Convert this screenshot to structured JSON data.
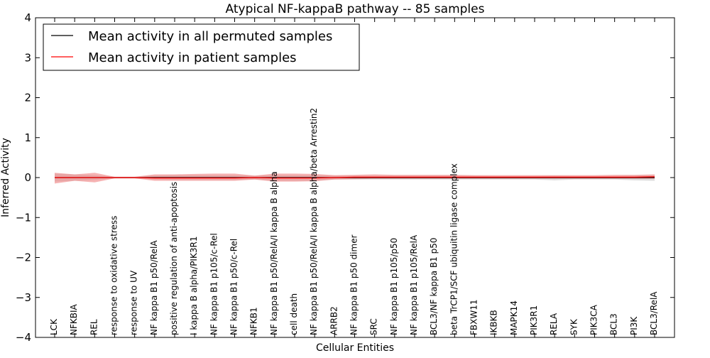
{
  "chart_data": {
    "type": "line",
    "title": "Atypical NF-kappaB pathway -- 85 samples",
    "xlabel": "Cellular Entities",
    "ylabel": "Inferred Activity",
    "ylim": [
      -4,
      4
    ],
    "yticks": [
      "−4",
      "−3",
      "−2",
      "−1",
      "0",
      "1",
      "2",
      "3",
      "4"
    ],
    "ytick_values": [
      -4,
      -3,
      -2,
      -1,
      0,
      1,
      2,
      3,
      4
    ],
    "grid": false,
    "legend_position": "top-left",
    "categories": [
      "LCK",
      "NFKBIA",
      "REL",
      "response to oxidative stress",
      "response to UV",
      "NF kappa B1 p50/RelA",
      "positive regulation of anti-apoptosis",
      "I kappa B alpha/PIK3R1",
      "NF kappa B1 p105/c-Rel",
      "NF kappa B1 p50/c-Rel",
      "NFKB1",
      "NF kappa B1 p50/RelA/I kappa B alpha",
      "cell death",
      "NF kappa B1 p50/RelA/I kappa B alpha/beta Arrestin2",
      "ARRB2",
      "NF kappa B1 p50 dimer",
      "SRC",
      "NF kappa B1 p105/p50",
      "NF kappa B1 p105/RelA",
      "BCL3/NF kappa B1 p50",
      "beta TrCP1/SCF ubiquitin ligase complex",
      "FBXW11",
      "IKBKB",
      "MAPK14",
      "PIK3R1",
      "RELA",
      "SYK",
      "PIK3CA",
      "BCL3",
      "PI3K",
      "BCL3/RelA"
    ],
    "series": [
      {
        "name": "Mean activity in all permuted samples",
        "color": "#000000",
        "band_color": "#bfbfbf",
        "values": [
          0,
          0,
          0,
          0,
          0,
          0,
          0,
          0,
          0,
          0,
          0,
          0,
          0,
          0,
          0,
          0,
          0,
          0,
          0,
          0,
          0,
          0,
          0,
          0,
          0,
          0,
          0,
          0,
          0,
          0,
          0
        ],
        "band_upper": [
          0.1,
          0.08,
          0.06,
          0.02,
          0.02,
          0.05,
          0.06,
          0.06,
          0.06,
          0.06,
          0.05,
          0.06,
          0.06,
          0.06,
          0.05,
          0.05,
          0.05,
          0.05,
          0.05,
          0.05,
          0.05,
          0.05,
          0.04,
          0.04,
          0.04,
          0.05,
          0.04,
          0.04,
          0.04,
          0.05,
          0.06
        ],
        "band_lower": [
          -0.1,
          -0.08,
          -0.06,
          -0.02,
          -0.02,
          -0.05,
          -0.06,
          -0.06,
          -0.06,
          -0.06,
          -0.05,
          -0.08,
          -0.08,
          -0.08,
          -0.05,
          -0.05,
          -0.05,
          -0.05,
          -0.05,
          -0.05,
          -0.05,
          -0.05,
          -0.05,
          -0.05,
          -0.05,
          -0.07,
          -0.05,
          -0.05,
          -0.05,
          -0.07,
          -0.08
        ]
      },
      {
        "name": "Mean activity in patient samples",
        "color": "#ff0000",
        "band_color": "#f08080",
        "values": [
          0,
          0,
          0,
          0,
          0,
          -0.01,
          -0.01,
          -0.01,
          -0.01,
          -0.01,
          0,
          -0.01,
          -0.01,
          -0.01,
          0,
          0.01,
          0.01,
          0.01,
          0.01,
          0.01,
          0.01,
          0.01,
          0.01,
          0.01,
          0.01,
          0.01,
          0.01,
          0.01,
          0.01,
          0.01,
          0.02
        ],
        "band_upper": [
          0.12,
          0.08,
          0.12,
          0.02,
          0.02,
          0.08,
          0.08,
          0.09,
          0.1,
          0.1,
          0.05,
          0.1,
          0.1,
          0.09,
          0.06,
          0.07,
          0.08,
          0.07,
          0.07,
          0.07,
          0.07,
          0.06,
          0.06,
          0.06,
          0.06,
          0.06,
          0.06,
          0.06,
          0.07,
          0.07,
          0.08
        ],
        "band_lower": [
          -0.15,
          -0.08,
          -0.12,
          -0.02,
          -0.02,
          -0.08,
          -0.08,
          -0.08,
          -0.08,
          -0.08,
          -0.05,
          -0.1,
          -0.1,
          -0.09,
          -0.05,
          -0.04,
          -0.03,
          -0.03,
          -0.03,
          -0.03,
          -0.03,
          -0.03,
          -0.03,
          -0.03,
          -0.03,
          -0.03,
          -0.03,
          -0.03,
          -0.03,
          -0.03,
          -0.03
        ]
      }
    ]
  }
}
